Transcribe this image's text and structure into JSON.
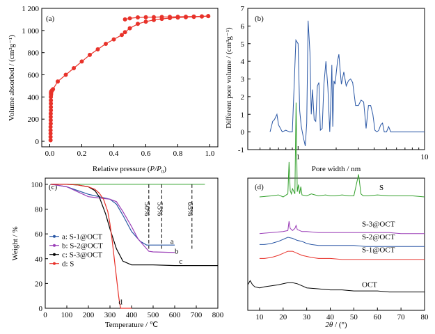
{
  "chart_data": [
    {
      "panel": "(a)",
      "type": "line",
      "xlabel_main": "Relative pressure (",
      "xlabel_var": "P/P",
      "xlabel_sub": "0",
      "xlabel_end": ")",
      "ylabel": "Volume  absorbed / (cm³g⁻¹)",
      "xlim": [
        -0.05,
        1.05
      ],
      "ylim": [
        -50,
        1200
      ],
      "xticks": [
        0.0,
        0.2,
        0.4,
        0.6,
        0.8,
        1.0
      ],
      "xtick_labels": [
        "0.0",
        "0.2",
        "0.4",
        "0.6",
        "0.8",
        "1.0"
      ],
      "yticks": [
        0,
        200,
        400,
        600,
        800,
        1000,
        1200
      ],
      "ytick_labels": [
        "0",
        "200",
        "400",
        "600",
        "800",
        "1 000",
        "1 200"
      ],
      "marker_color": "#e8322a",
      "adsorption": {
        "x": [
          0.005,
          0.005,
          0.005,
          0.005,
          0.005,
          0.006,
          0.006,
          0.006,
          0.006,
          0.007,
          0.007,
          0.007,
          0.007,
          0.007,
          0.008,
          0.008,
          0.008,
          0.008,
          0.009,
          0.009,
          0.01,
          0.01,
          0.012,
          0.015,
          0.02,
          0.05,
          0.1,
          0.15,
          0.2,
          0.25,
          0.3,
          0.35,
          0.4,
          0.45,
          0.47,
          0.5,
          0.55,
          0.6,
          0.65,
          0.7,
          0.75,
          0.8,
          0.85,
          0.9,
          0.95,
          0.99
        ],
        "y": [
          10,
          40,
          70,
          100,
          130,
          160,
          190,
          220,
          250,
          280,
          310,
          340,
          370,
          400,
          420,
          430,
          438,
          442,
          446,
          448,
          450,
          452,
          455,
          460,
          470,
          540,
          600,
          660,
          720,
          780,
          830,
          880,
          920,
          960,
          985,
          1020,
          1060,
          1080,
          1095,
          1105,
          1112,
          1117,
          1120,
          1123,
          1126,
          1130
        ]
      },
      "desorption": {
        "x": [
          0.99,
          0.95,
          0.9,
          0.85,
          0.8,
          0.75,
          0.7,
          0.65,
          0.6,
          0.55,
          0.5,
          0.47
        ],
        "y": [
          1130,
          1128,
          1126,
          1125,
          1124,
          1123,
          1122,
          1121,
          1120,
          1118,
          1110,
          1100
        ]
      }
    },
    {
      "panel": "(b)",
      "type": "line",
      "xlabel": "Pore width / nm",
      "ylabel": "Different pore volume / (cm³g⁻¹)",
      "xscale": "log",
      "xlim": [
        0.4,
        10
      ],
      "ylim": [
        -1,
        7
      ],
      "xticks": [
        1,
        10
      ],
      "xtick_labels": [
        "1",
        "10"
      ],
      "yticks": [
        -1,
        0,
        1,
        2,
        3,
        4,
        5,
        6,
        7
      ],
      "ytick_labels": [
        "-1",
        "0",
        "1",
        "2",
        "3",
        "4",
        "5",
        "6",
        "7"
      ],
      "line_color": "#2a57a5",
      "x": [
        0.6,
        0.63,
        0.65,
        0.68,
        0.7,
        0.75,
        0.8,
        0.85,
        0.9,
        0.93,
        0.96,
        1.0,
        1.03,
        1.06,
        1.1,
        1.14,
        1.17,
        1.2,
        1.24,
        1.27,
        1.3,
        1.34,
        1.38,
        1.42,
        1.46,
        1.5,
        1.55,
        1.6,
        1.66,
        1.72,
        1.78,
        1.82,
        1.85,
        1.88,
        1.92,
        1.96,
        2.0,
        2.05,
        2.1,
        2.15,
        2.2,
        2.3,
        2.4,
        2.5,
        2.6,
        2.7,
        2.85,
        3.0,
        3.15,
        3.3,
        3.45,
        3.6,
        3.75,
        3.9,
        4.05,
        4.2,
        4.35,
        4.5,
        4.65,
        4.8,
        5.0,
        5.2,
        5.4,
        5.6,
        5.8,
        6.0,
        6.5,
        7.0,
        8.0,
        10.0
      ],
      "y": [
        0.0,
        0.6,
        0.7,
        1.0,
        0.4,
        0.0,
        0.1,
        0.0,
        0.0,
        2.6,
        5.2,
        5.0,
        1.2,
        0.3,
        -0.3,
        -0.8,
        0.5,
        6.3,
        4.5,
        1.0,
        2.4,
        0.7,
        0.6,
        2.6,
        2.8,
        0.1,
        0.2,
        2.7,
        4.0,
        2.5,
        0.0,
        2.0,
        3.8,
        0.3,
        2.9,
        2.7,
        3.3,
        4.0,
        4.4,
        3.5,
        2.7,
        3.4,
        2.6,
        2.9,
        3.0,
        2.8,
        1.5,
        1.5,
        1.8,
        1.7,
        0.2,
        1.5,
        1.5,
        1.0,
        0.1,
        0.0,
        0.1,
        0.4,
        0.5,
        0.0,
        0.0,
        0.3,
        0.0,
        0.0,
        0.0,
        0.0,
        0.0,
        0.0,
        0.0,
        0.0
      ]
    },
    {
      "panel": "(c)",
      "type": "line",
      "xlabel": "Temperature / ℃",
      "ylabel": "Weight / %",
      "xlim": [
        0,
        800
      ],
      "ylim": [
        0,
        105
      ],
      "xticks": [
        0,
        100,
        200,
        300,
        400,
        500,
        600,
        700,
        800
      ],
      "xtick_labels": [
        "0",
        "100",
        "200",
        "300",
        "400",
        "500",
        "600",
        "700",
        "800"
      ],
      "yticks": [
        0,
        20,
        40,
        60,
        80,
        100
      ],
      "ytick_labels": [
        "0",
        "20",
        "40",
        "60",
        "80",
        "100"
      ],
      "legend_position": "left",
      "annotations": [
        "50%",
        "55%",
        "65%"
      ],
      "annotation_x": [
        480,
        540,
        680
      ],
      "reference_line": {
        "y": 100,
        "xmin": 30,
        "xmax": 740,
        "color": "#33a02c"
      },
      "series": [
        {
          "name": "a: S-1@OCT",
          "curve_label": "a",
          "color": "#2a57a5",
          "x": [
            25,
            50,
            100,
            150,
            200,
            250,
            300,
            330,
            360,
            400,
            440,
            470,
            500,
            600
          ],
          "y": [
            100,
            99.5,
            98,
            95,
            92,
            90,
            88,
            84,
            75,
            62,
            54,
            51,
            51,
            51
          ]
        },
        {
          "name": "b: S-2@OCT",
          "curve_label": "b",
          "color": "#9a3db7",
          "x": [
            25,
            50,
            100,
            150,
            200,
            250,
            300,
            330,
            360,
            400,
            430,
            460,
            480,
            500,
            600
          ],
          "y": [
            100,
            99.5,
            98,
            94,
            90,
            89,
            88,
            86,
            78,
            66,
            56,
            50,
            46,
            45.5,
            45
          ]
        },
        {
          "name": "c: S-3@OCT",
          "curve_label": "c",
          "color": "#000000",
          "x": [
            25,
            50,
            100,
            150,
            200,
            230,
            250,
            280,
            300,
            330,
            360,
            400,
            450,
            500,
            600,
            700,
            800
          ],
          "y": [
            100,
            100,
            100,
            99.5,
            98,
            95,
            90,
            76,
            64,
            48,
            38,
            35,
            35,
            35,
            34.5,
            34.5,
            34.5
          ]
        },
        {
          "name": "d: S",
          "curve_label": "d",
          "color": "#e8322a",
          "x": [
            25,
            100,
            150,
            200,
            230,
            250,
            270,
            290,
            300,
            310,
            320,
            330,
            340,
            345,
            350,
            370,
            400
          ],
          "y": [
            100,
            100,
            99.5,
            98,
            96,
            93,
            88,
            78,
            68,
            55,
            40,
            25,
            10,
            4,
            0,
            0,
            0
          ]
        }
      ]
    },
    {
      "panel": "(d)",
      "type": "line",
      "xlabel_var": "2θ",
      "xlabel_end": " / (°)",
      "xlim": [
        5,
        80
      ],
      "xticks": [
        10,
        20,
        30,
        40,
        50,
        60,
        70,
        80
      ],
      "xtick_labels": [
        "10",
        "20",
        "30",
        "40",
        "50",
        "60",
        "70",
        "80"
      ],
      "series": [
        {
          "name": "S",
          "color": "#33a02c",
          "offset": 100,
          "x": [
            10,
            15,
            18,
            20,
            22,
            22.5,
            23,
            23.5,
            24,
            25,
            25.5,
            26,
            26.5,
            27,
            27.5,
            28,
            30,
            32,
            35,
            38,
            40,
            42,
            45,
            48,
            50,
            52,
            53,
            54,
            56,
            60,
            65,
            70,
            75,
            80
          ],
          "y": [
            0,
            1,
            2,
            0,
            3,
            34,
            6,
            3,
            8,
            3,
            92,
            5,
            12,
            3,
            10,
            2,
            1,
            3,
            1,
            2,
            1,
            1,
            2,
            1,
            1,
            22,
            3,
            1,
            1,
            2,
            1,
            1,
            1,
            0
          ]
        },
        {
          "name": "S-3@OCT",
          "color": "#9a3db7",
          "offset": 66,
          "x": [
            10,
            15,
            20,
            22,
            22.5,
            23,
            24,
            25,
            25.5,
            26,
            27,
            28,
            30,
            35,
            40,
            45,
            50,
            55,
            60,
            65,
            70,
            75,
            80
          ],
          "y": [
            0,
            1,
            2,
            3,
            12,
            5,
            3,
            5,
            8,
            4,
            3,
            2,
            2,
            1,
            1,
            1,
            1,
            1,
            1,
            1,
            0,
            0,
            0
          ]
        },
        {
          "name": "S-2@OCT",
          "color": "#2a57a5",
          "offset": 54,
          "x": [
            10,
            12,
            15,
            18,
            20,
            22,
            24,
            26,
            28,
            30,
            32,
            35,
            40,
            45,
            50,
            55,
            60,
            65,
            70,
            75,
            80
          ],
          "y": [
            2,
            2,
            3,
            5,
            7,
            9,
            8,
            6,
            5,
            3,
            2,
            1,
            1,
            1,
            1,
            0,
            0,
            0,
            0,
            0,
            0
          ]
        },
        {
          "name": "S-1@OCT",
          "color": "#e8322a",
          "offset": 42,
          "x": [
            10,
            12,
            15,
            18,
            20,
            22,
            24,
            26,
            28,
            30,
            32,
            35,
            40,
            45,
            50,
            55,
            60,
            65,
            70,
            75,
            80
          ],
          "y": [
            1,
            1,
            2,
            4,
            6,
            8,
            8,
            6,
            4,
            3,
            2,
            1,
            1,
            0,
            0,
            0,
            0,
            0,
            0,
            0,
            0
          ]
        },
        {
          "name": "OCT",
          "color": "#000000",
          "offset": 10,
          "x": [
            5,
            6,
            6.5,
            7,
            8,
            10,
            12,
            15,
            18,
            20,
            22,
            24,
            26,
            28,
            30,
            35,
            40,
            45,
            50,
            55,
            60,
            65,
            70,
            75,
            80
          ],
          "y": [
            9,
            13,
            11,
            9,
            7,
            6,
            7,
            8,
            9,
            10,
            11,
            11,
            10,
            8,
            6,
            5,
            4,
            4,
            3,
            3,
            3,
            2,
            2,
            2,
            2
          ]
        }
      ]
    }
  ]
}
